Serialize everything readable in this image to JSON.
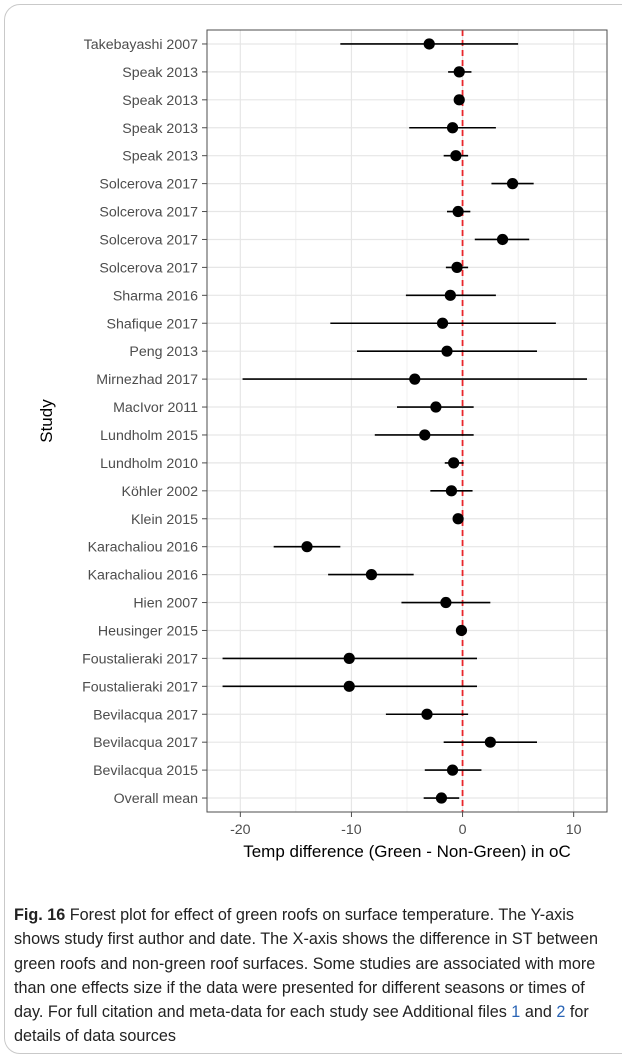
{
  "chart_data": {
    "type": "forest",
    "ylabel": "Study",
    "xlabel": "Temp difference (Green - Non-Green) in oC",
    "xlim": [
      -23,
      13
    ],
    "xticks": [
      -20,
      -10,
      0,
      10
    ],
    "xtick_labels": [
      "-20",
      "-10",
      "0",
      "10"
    ],
    "reference_line": {
      "x": 0,
      "style": "dashed",
      "color": "#e8262b"
    },
    "grid": true,
    "studies": [
      {
        "label": "Takebayashi 2007",
        "estimate": -3.0,
        "ci": [
          -11.0,
          5.0
        ]
      },
      {
        "label": "Speak 2013",
        "estimate": -0.3,
        "ci": [
          -1.3,
          0.8
        ]
      },
      {
        "label": "Speak 2013",
        "estimate": -0.3,
        "ci": [
          -0.6,
          0.1
        ]
      },
      {
        "label": "Speak 2013",
        "estimate": -0.9,
        "ci": [
          -4.8,
          3.0
        ]
      },
      {
        "label": "Speak 2013",
        "estimate": -0.6,
        "ci": [
          -1.7,
          0.5
        ]
      },
      {
        "label": "Solcerova 2017",
        "estimate": 4.5,
        "ci": [
          2.6,
          6.4
        ]
      },
      {
        "label": "Solcerova 2017",
        "estimate": -0.4,
        "ci": [
          -1.4,
          0.7
        ]
      },
      {
        "label": "Solcerova 2017",
        "estimate": 3.6,
        "ci": [
          1.1,
          6.0
        ]
      },
      {
        "label": "Solcerova 2017",
        "estimate": -0.5,
        "ci": [
          -1.5,
          0.5
        ]
      },
      {
        "label": "Sharma 2016",
        "estimate": -1.1,
        "ci": [
          -5.1,
          3.0
        ]
      },
      {
        "label": "Shafique 2017",
        "estimate": -1.8,
        "ci": [
          -11.9,
          8.4
        ]
      },
      {
        "label": "Peng 2013",
        "estimate": -1.4,
        "ci": [
          -9.5,
          6.7
        ]
      },
      {
        "label": "Mirnezhad 2017",
        "estimate": -4.3,
        "ci": [
          -19.8,
          11.2
        ]
      },
      {
        "label": "MacIvor 2011",
        "estimate": -2.4,
        "ci": [
          -5.9,
          1.0
        ]
      },
      {
        "label": "Lundholm 2015",
        "estimate": -3.4,
        "ci": [
          -7.9,
          1.0
        ]
      },
      {
        "label": "Lundholm 2010",
        "estimate": -0.8,
        "ci": [
          -1.6,
          0.1
        ]
      },
      {
        "label": "Köhler 2002",
        "estimate": -1.0,
        "ci": [
          -2.9,
          0.9
        ]
      },
      {
        "label": "Klein 2015",
        "estimate": -0.4,
        "ci": [
          -0.8,
          0.0
        ]
      },
      {
        "label": "Karachaliou 2016",
        "estimate": -14.0,
        "ci": [
          -17.0,
          -11.0
        ]
      },
      {
        "label": "Karachaliou 2016",
        "estimate": -8.2,
        "ci": [
          -12.1,
          -4.4
        ]
      },
      {
        "label": "Hien 2007",
        "estimate": -1.5,
        "ci": [
          -5.5,
          2.5
        ]
      },
      {
        "label": "Heusinger 2015",
        "estimate": -0.1,
        "ci": [
          -0.2,
          0.1
        ]
      },
      {
        "label": "Foustalieraki 2017",
        "estimate": -10.2,
        "ci": [
          -21.6,
          1.3
        ]
      },
      {
        "label": "Foustalieraki 2017",
        "estimate": -10.2,
        "ci": [
          -21.6,
          1.3
        ]
      },
      {
        "label": "Bevilacqua 2017",
        "estimate": -3.2,
        "ci": [
          -6.9,
          0.5
        ]
      },
      {
        "label": "Bevilacqua 2017",
        "estimate": 2.5,
        "ci": [
          -1.7,
          6.7
        ]
      },
      {
        "label": "Bevilacqua 2015",
        "estimate": -0.9,
        "ci": [
          -3.4,
          1.7
        ]
      },
      {
        "label": "Overall mean",
        "estimate": -1.9,
        "ci": [
          -3.5,
          -0.3
        ]
      }
    ]
  },
  "caption": {
    "label": "Fig. 16",
    "text_before": "Forest plot for effect of green roofs on surface temperature. The Y-axis shows study first author and date. The X-axis shows the difference in ST between green roofs and non-green roof surfaces. Some studies are associated with more than one effects size if the data were presented for different seasons or times of day. For full citation and meta-data for each study see Additional files",
    "ref1": "1",
    "text_between": "and",
    "ref2": "2",
    "text_after": "for details of data sources"
  },
  "colors": {
    "point": "#000000",
    "reference_line": "#e8262b",
    "grid": "#e6e6e6",
    "panel_border": "#4d4d4d",
    "axis_text": "#4d4d4d",
    "link": "#2a64b5"
  }
}
